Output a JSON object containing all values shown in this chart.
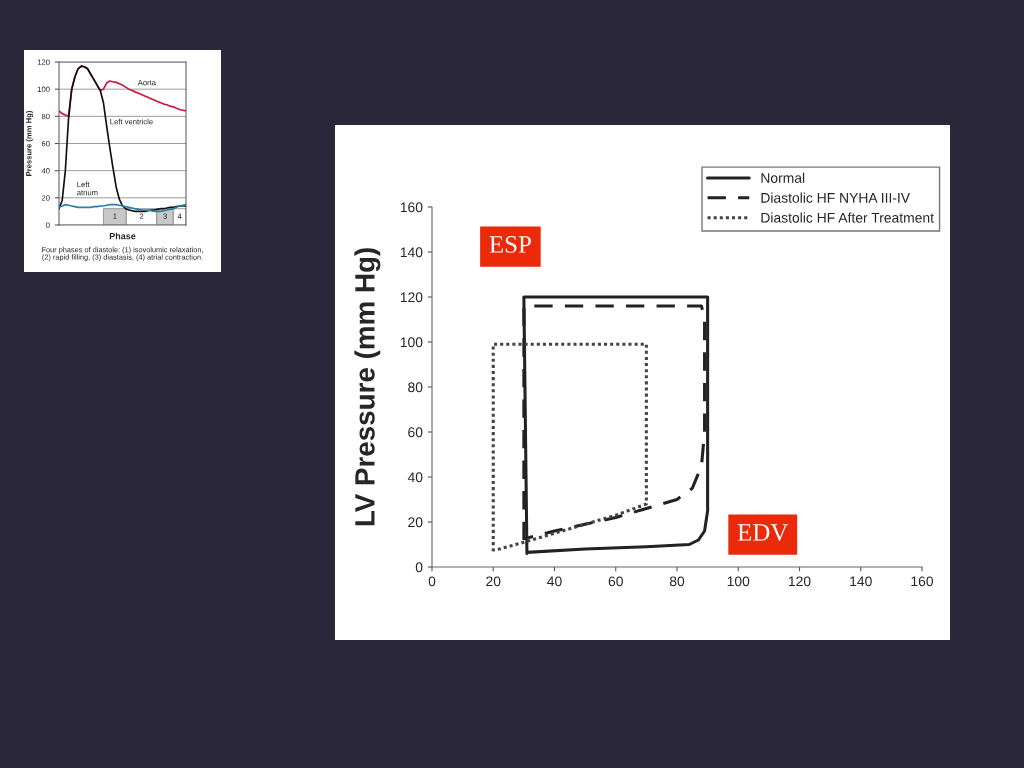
{
  "chart_data": [
    {
      "type": "line",
      "xlabel": "Phase",
      "ylabel": "Pressure (mm Hg)",
      "ylim": [
        0,
        120
      ],
      "yticks": [
        0,
        20,
        40,
        60,
        80,
        100,
        120
      ],
      "grid": "y",
      "legend": false,
      "categories": [
        null,
        null,
        null,
        null,
        null,
        null,
        null,
        null,
        null,
        null,
        null,
        null,
        null,
        null,
        null,
        null,
        null,
        null,
        null,
        null,
        null,
        null,
        null,
        null,
        null,
        null,
        null,
        null,
        null,
        null,
        null,
        null,
        null,
        null,
        null,
        null,
        null,
        null,
        null,
        null,
        null
      ],
      "series": [
        {
          "name": "Aorta",
          "color": "#d0163c",
          "values": [
            84,
            82,
            81,
            80,
            100,
            109,
            115,
            117,
            116.5,
            115,
            111,
            107,
            103,
            99,
            100,
            104.5,
            106,
            105.5,
            105,
            104,
            103,
            101.5,
            100,
            99,
            98,
            97,
            96,
            95,
            94,
            93,
            92,
            91,
            90,
            89,
            88.5,
            87.5,
            87,
            86,
            85,
            84.5,
            84
          ]
        },
        {
          "name": "Left ventricle",
          "color": "#111111",
          "values": [
            12,
            18,
            40,
            78,
            100,
            109,
            115,
            117,
            116.5,
            115,
            111,
            107,
            103,
            99,
            90,
            73,
            57,
            42,
            28,
            19,
            14,
            12,
            11,
            10.5,
            10,
            10,
            10,
            10,
            10.5,
            11,
            11,
            11.5,
            12,
            12,
            12.5,
            13,
            13,
            13.5,
            14,
            14,
            14
          ]
        },
        {
          "name": "Left\natrium",
          "color": "#2b7fa8",
          "values": [
            13,
            14,
            15,
            14.5,
            14,
            13.5,
            13,
            13,
            13,
            13,
            13,
            13.5,
            13.5,
            14,
            14,
            14.5,
            15,
            15,
            15,
            14.5,
            14,
            13.5,
            13,
            12.5,
            12,
            11.5,
            11,
            11,
            11,
            10.5,
            10,
            10,
            10,
            10.5,
            11,
            11.5,
            12,
            13,
            14,
            14.5,
            15
          ]
        }
      ],
      "annotations": [
        "1",
        "2",
        "3",
        "4",
        "Four phases of diastole: (1) isovolumic relaxation,\n(2) rapid filling, (3) diastasis, (4) atrial contraction."
      ]
    },
    {
      "type": "line",
      "ylabel": "LV Pressure (mm Hg)",
      "xlim": [
        0,
        160
      ],
      "ylim": [
        0,
        160
      ],
      "xticks": [
        0,
        20,
        40,
        60,
        80,
        100,
        120,
        140,
        160
      ],
      "yticks": [
        0,
        20,
        40,
        60,
        80,
        100,
        120,
        140,
        160
      ],
      "grid": false,
      "legend": "top right",
      "series": [
        {
          "name": "Normal",
          "color": "#222222",
          "line_style": "solid",
          "x": [
            31,
            30,
            90,
            90,
            90,
            89,
            87,
            84,
            70,
            50,
            31
          ],
          "values": [
            6,
            120,
            120,
            60,
            25,
            16,
            12,
            10,
            9,
            8,
            6.5
          ]
        },
        {
          "name": "Diastolic HF NYHA III-IV",
          "color": "#222222",
          "line_style": "dashed",
          "x": [
            30,
            30,
            88,
            89,
            89,
            88,
            85,
            80,
            70,
            60,
            50,
            40,
            30
          ],
          "values": [
            12,
            116,
            116,
            110,
            60,
            45,
            35,
            30,
            26,
            22,
            19,
            16,
            12.5
          ]
        },
        {
          "name": "Diastolic HF After Treatment",
          "color": "#444444",
          "line_style": "dotted",
          "x": [
            20,
            20,
            70,
            70,
            60,
            50,
            40,
            30,
            22,
            20
          ],
          "values": [
            7,
            99,
            99,
            28,
            23,
            19,
            15,
            11,
            8,
            7.5
          ]
        }
      ],
      "annotations": [
        "ESP",
        "EDV"
      ]
    }
  ]
}
